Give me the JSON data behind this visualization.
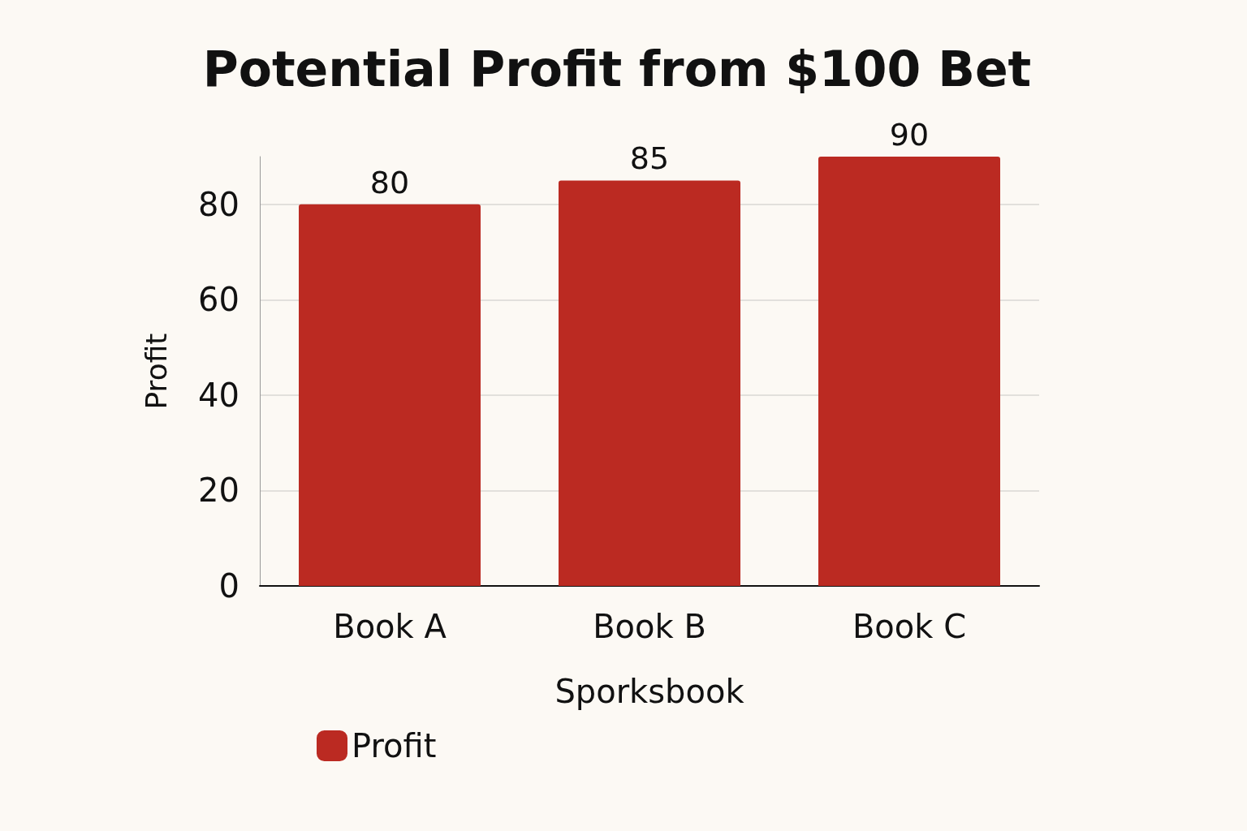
{
  "chart_data": {
    "type": "bar",
    "title": "Potential Profit from $100 Bet",
    "xlabel": "Sporksbook",
    "ylabel": "Profit",
    "categories": [
      "Book A",
      "Book B",
      "Book C"
    ],
    "series": [
      {
        "name": "Profit",
        "color": "#bb2a22",
        "values": [
          80,
          85,
          90
        ]
      }
    ],
    "data_labels": true,
    "ylim": [
      0,
      90
    ],
    "yticks": [
      0,
      20,
      40,
      60,
      80
    ],
    "grid": "y",
    "legend": "bottom left"
  }
}
